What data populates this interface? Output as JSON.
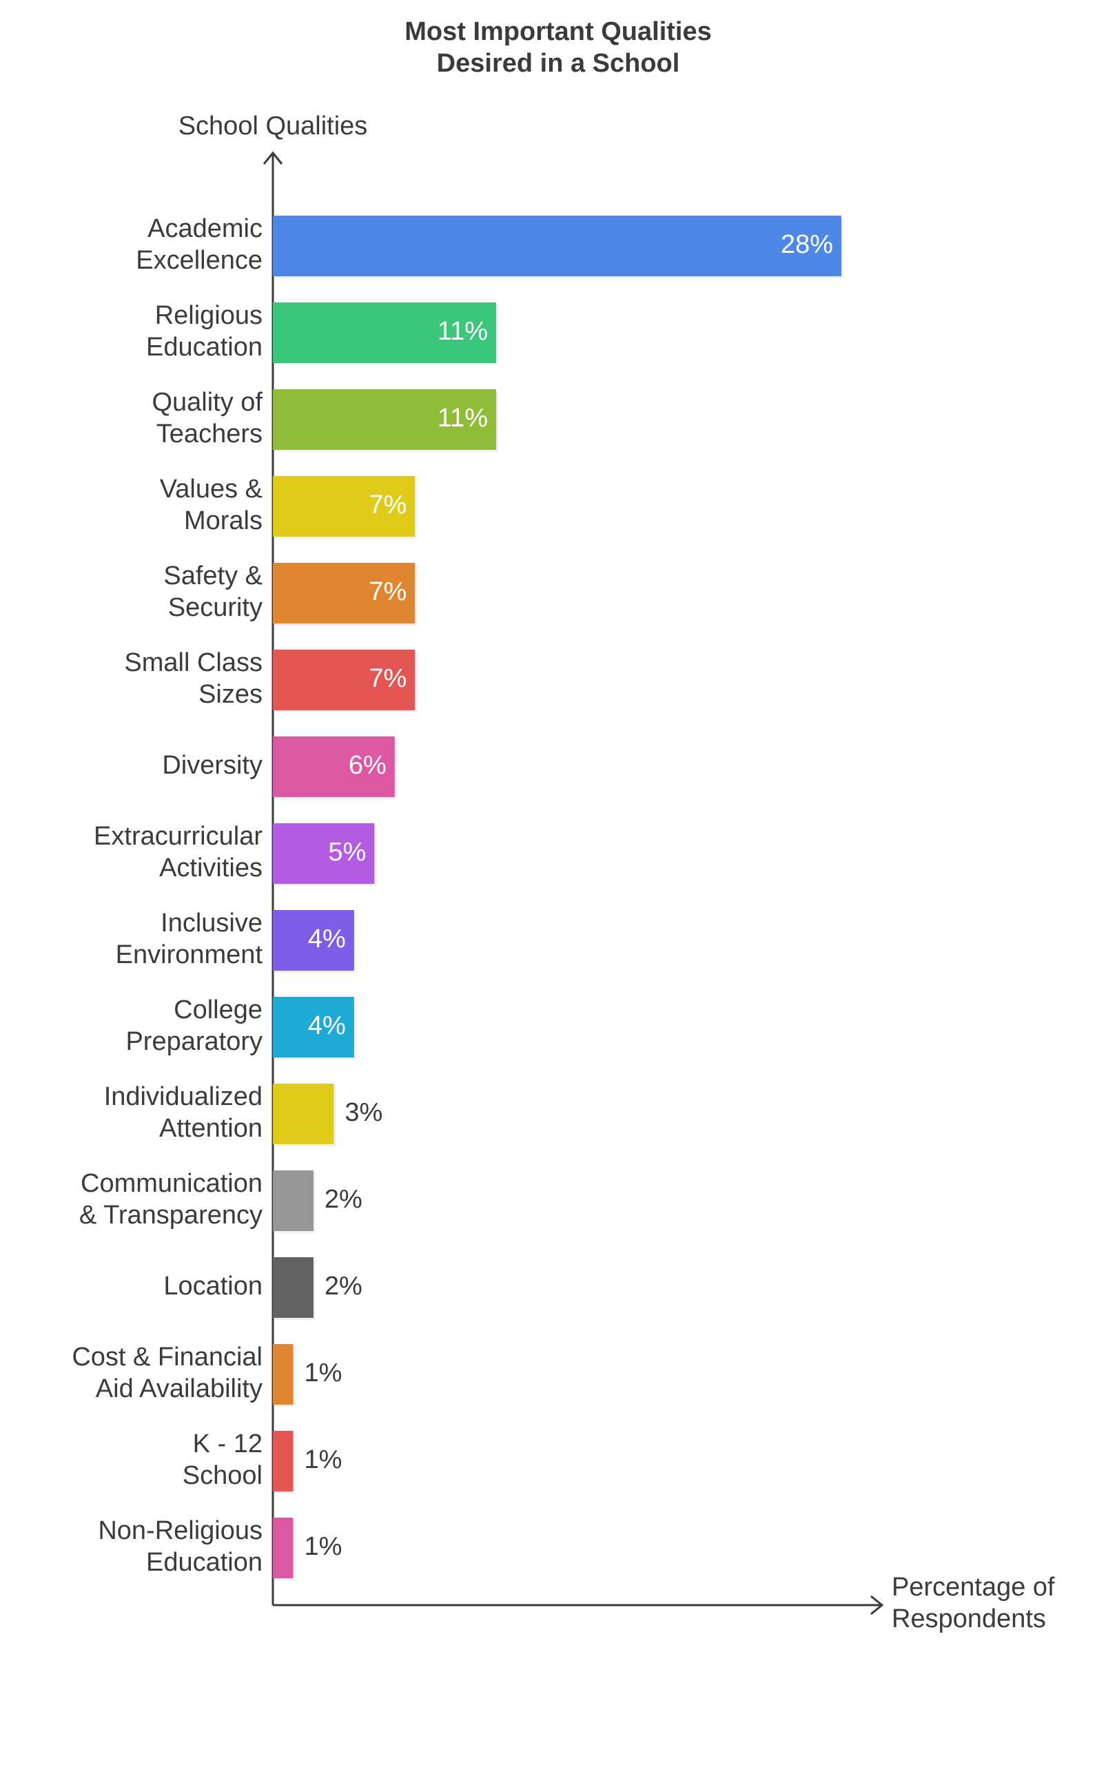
{
  "chart_data": {
    "type": "bar",
    "orientation": "horizontal",
    "title": [
      "Most Important Qualities",
      "Desired in a School"
    ],
    "ylabel": "School Qualities",
    "xlabel": [
      "Percentage of",
      "Respondents"
    ],
    "value_suffix": "%",
    "xlim": [
      0,
      28
    ],
    "grid": false,
    "legend": "none",
    "categories": [
      [
        "Academic",
        "Excellence"
      ],
      [
        "Religious",
        "Education"
      ],
      [
        "Quality of",
        "Teachers"
      ],
      [
        "Values &",
        "Morals"
      ],
      [
        "Safety &",
        "Security"
      ],
      [
        "Small Class",
        "Sizes"
      ],
      [
        "Diversity"
      ],
      [
        "Extracurricular",
        "Activities"
      ],
      [
        "Inclusive",
        "Environment"
      ],
      [
        "College",
        "Preparatory"
      ],
      [
        "Individualized",
        "Attention"
      ],
      [
        "Communication",
        "& Transparency"
      ],
      [
        "Location"
      ],
      [
        "Cost & Financial",
        "Aid Availability"
      ],
      [
        "K - 12",
        "School"
      ],
      [
        "Non-Religious",
        "Education"
      ]
    ],
    "values": [
      28,
      11,
      11,
      7,
      7,
      7,
      6,
      5,
      4,
      4,
      3,
      2,
      2,
      1,
      1,
      1
    ],
    "colors": [
      "#4f87e6",
      "#3cc67c",
      "#8fbd3a",
      "#dfcb19",
      "#e08631",
      "#e45653",
      "#dd58a3",
      "#b45be4",
      "#7d5ce6",
      "#1fa9d7",
      "#dfcb19",
      "#969696",
      "#626262",
      "#e08631",
      "#e45653",
      "#dd58a3"
    ],
    "label_inside_colors": "#ffffff",
    "label_outside_color": "#3b3b3b"
  }
}
